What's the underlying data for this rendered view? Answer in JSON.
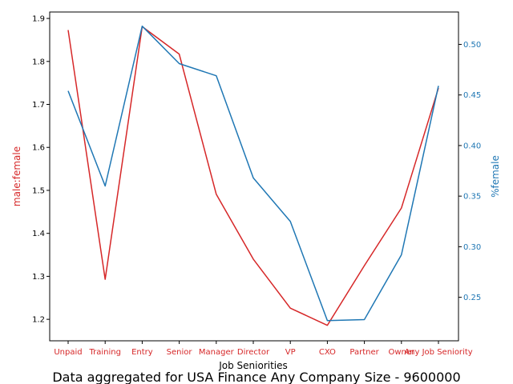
{
  "chart_data": {
    "type": "line",
    "title": "Data aggregated for USA Finance Any Company Size - 9600000",
    "xlabel": "Job Seniorities",
    "categories": [
      "Unpaid",
      "Training",
      "Entry",
      "Senior",
      "Manager",
      "Director",
      "VP",
      "CXO",
      "Partner",
      "Owner",
      "Any Job Seniority"
    ],
    "series": [
      {
        "name": "male:female",
        "axis": "left",
        "color": "#d62728",
        "values": [
          1.873,
          1.293,
          1.881,
          1.817,
          1.491,
          1.34,
          1.226,
          1.186,
          1.325,
          1.459,
          1.738
        ]
      },
      {
        "name": "%female",
        "axis": "right",
        "color": "#1f77b4",
        "values": [
          0.454,
          0.36,
          0.518,
          0.481,
          0.469,
          0.368,
          0.325,
          0.227,
          0.228,
          0.292,
          0.459
        ]
      }
    ],
    "ylabel_left": "male:female",
    "ylabel_right": "%female",
    "ylim_left": [
      1.15,
      1.915
    ],
    "ylim_right": [
      0.207,
      0.532
    ],
    "yticks_left": [
      "1.2",
      "1.3",
      "1.4",
      "1.5",
      "1.6",
      "1.7",
      "1.8",
      "1.9"
    ],
    "yticks_right": [
      "0.25",
      "0.30",
      "0.35",
      "0.40",
      "0.45",
      "0.50"
    ],
    "grid": false,
    "legend": "none",
    "left_axis_color": "#d62728",
    "right_axis_color": "#1f77b4"
  }
}
